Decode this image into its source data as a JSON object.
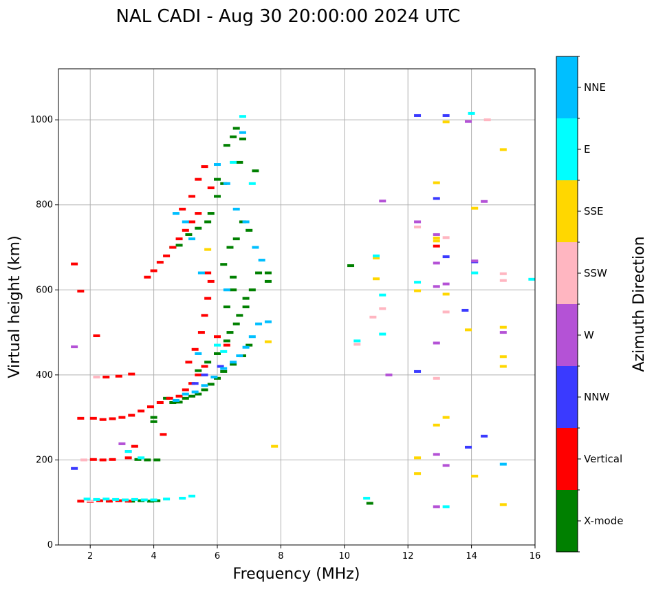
{
  "chart_data": {
    "type": "scatter",
    "title": "NAL CADI - Aug 30 20:00:00 2024 UTC",
    "xlabel": "Frequency (MHz)",
    "ylabel": "Virtual height (km)",
    "colorbar_label": "Azimuth Direction",
    "xlim": [
      1,
      16
    ],
    "ylim": [
      0,
      1120
    ],
    "xticks": [
      2,
      4,
      6,
      8,
      10,
      12,
      14,
      16
    ],
    "yticks": [
      0,
      200,
      400,
      600,
      800,
      1000
    ],
    "grid": true,
    "categories": [
      {
        "name": "X-mode",
        "color": "#008000"
      },
      {
        "name": "Vertical",
        "color": "#ff0000"
      },
      {
        "name": "NNW",
        "color": "#3a3aff"
      },
      {
        "name": "W",
        "color": "#b452d6"
      },
      {
        "name": "SSW",
        "color": "#ffb6c1"
      },
      {
        "name": "SSE",
        "color": "#ffd700"
      },
      {
        "name": "E",
        "color": "#00ffff"
      },
      {
        "name": "NNE",
        "color": "#00bfff"
      }
    ],
    "series": [
      {
        "name": "X-mode",
        "points": [
          [
            3.3,
            103
          ],
          [
            3.6,
            104
          ],
          [
            3.9,
            103
          ],
          [
            4.1,
            104
          ],
          [
            3.5,
            201
          ],
          [
            3.8,
            200
          ],
          [
            4.1,
            200
          ],
          [
            4.0,
            300
          ],
          [
            4.0,
            290
          ],
          [
            4.4,
            345
          ],
          [
            4.6,
            335
          ],
          [
            4.8,
            336
          ],
          [
            5.0,
            345
          ],
          [
            5.2,
            350
          ],
          [
            5.4,
            355
          ],
          [
            5.6,
            365
          ],
          [
            5.8,
            378
          ],
          [
            6.0,
            392
          ],
          [
            6.2,
            408
          ],
          [
            6.5,
            425
          ],
          [
            6.8,
            445
          ],
          [
            7.0,
            470
          ],
          [
            5.4,
            410
          ],
          [
            5.7,
            430
          ],
          [
            6.0,
            450
          ],
          [
            6.3,
            480
          ],
          [
            6.6,
            520
          ],
          [
            6.9,
            560
          ],
          [
            7.1,
            600
          ],
          [
            7.3,
            640
          ],
          [
            6.2,
            660
          ],
          [
            6.4,
            700
          ],
          [
            6.6,
            720
          ],
          [
            6.8,
            760
          ],
          [
            7.0,
            740
          ],
          [
            6.4,
            500
          ],
          [
            6.7,
            540
          ],
          [
            6.9,
            580
          ],
          [
            6.0,
            860
          ],
          [
            6.3,
            940
          ],
          [
            6.5,
            960
          ],
          [
            6.6,
            980
          ],
          [
            6.8,
            955
          ],
          [
            7.2,
            880
          ],
          [
            5.8,
            780
          ],
          [
            6.0,
            820
          ],
          [
            6.2,
            850
          ],
          [
            6.7,
            900
          ],
          [
            4.6,
            700
          ],
          [
            4.8,
            705
          ],
          [
            5.1,
            730
          ],
          [
            5.4,
            745
          ],
          [
            5.7,
            760
          ],
          [
            6.5,
            600
          ],
          [
            6.5,
            630
          ],
          [
            6.3,
            560
          ],
          [
            10.2,
            657
          ],
          [
            10.8,
            98
          ],
          [
            7.6,
            640
          ],
          [
            7.6,
            620
          ]
        ]
      },
      {
        "name": "Vertical",
        "points": [
          [
            1.7,
            103
          ],
          [
            2.0,
            102
          ],
          [
            2.3,
            104
          ],
          [
            2.6,
            103
          ],
          [
            2.9,
            104
          ],
          [
            3.2,
            103
          ],
          [
            2.1,
            201
          ],
          [
            2.4,
            200
          ],
          [
            2.7,
            201
          ],
          [
            1.7,
            298
          ],
          [
            2.1,
            298
          ],
          [
            2.4,
            295
          ],
          [
            2.7,
            297
          ],
          [
            3.0,
            300
          ],
          [
            3.3,
            305
          ],
          [
            3.6,
            315
          ],
          [
            3.9,
            325
          ],
          [
            4.2,
            335
          ],
          [
            4.5,
            345
          ],
          [
            4.8,
            350
          ],
          [
            5.0,
            365
          ],
          [
            5.2,
            380
          ],
          [
            5.4,
            400
          ],
          [
            5.6,
            420
          ],
          [
            5.1,
            430
          ],
          [
            5.3,
            460
          ],
          [
            5.5,
            500
          ],
          [
            5.6,
            540
          ],
          [
            5.7,
            580
          ],
          [
            5.8,
            620
          ],
          [
            5.7,
            640
          ],
          [
            3.8,
            630
          ],
          [
            4.0,
            645
          ],
          [
            4.2,
            665
          ],
          [
            4.4,
            680
          ],
          [
            4.6,
            700
          ],
          [
            4.8,
            720
          ],
          [
            5.0,
            740
          ],
          [
            5.2,
            760
          ],
          [
            5.4,
            780
          ],
          [
            4.9,
            790
          ],
          [
            5.2,
            820
          ],
          [
            5.4,
            860
          ],
          [
            5.6,
            890
          ],
          [
            5.8,
            840
          ],
          [
            2.2,
            492
          ],
          [
            2.5,
            395
          ],
          [
            2.9,
            397
          ],
          [
            3.3,
            402
          ],
          [
            3.4,
            232
          ],
          [
            3.2,
            205
          ],
          [
            4.3,
            260
          ],
          [
            1.5,
            661
          ],
          [
            1.7,
            597
          ],
          [
            12.9,
            703
          ],
          [
            6.0,
            490
          ],
          [
            6.3,
            470
          ]
        ]
      },
      {
        "name": "NNW",
        "points": [
          [
            12.3,
            1010
          ],
          [
            13.2,
            1010
          ],
          [
            12.9,
            815
          ],
          [
            13.2,
            678
          ],
          [
            13.8,
            552
          ],
          [
            12.3,
            408
          ],
          [
            14.4,
            256
          ],
          [
            13.9,
            230
          ],
          [
            14.1,
            666
          ],
          [
            5.3,
            380
          ],
          [
            5.6,
            400
          ],
          [
            6.1,
            420
          ],
          [
            1.5,
            180
          ]
        ]
      },
      {
        "name": "W",
        "points": [
          [
            12.3,
            760
          ],
          [
            12.9,
            730
          ],
          [
            12.9,
            663
          ],
          [
            13.2,
            614
          ],
          [
            12.9,
            608
          ],
          [
            12.9,
            475
          ],
          [
            12.9,
            213
          ],
          [
            13.2,
            187
          ],
          [
            12.9,
            90
          ],
          [
            14.1,
            668
          ],
          [
            14.4,
            808
          ],
          [
            15.0,
            500
          ],
          [
            11.4,
            400
          ],
          [
            11.2,
            809
          ],
          [
            13.9,
            996
          ],
          [
            3.2,
            220
          ],
          [
            3.0,
            238
          ],
          [
            1.5,
            466
          ]
        ]
      },
      {
        "name": "SSW",
        "points": [
          [
            12.3,
            748
          ],
          [
            13.2,
            723
          ],
          [
            13.2,
            548
          ],
          [
            12.9,
            392
          ],
          [
            14.5,
            1000
          ],
          [
            15.0,
            638
          ],
          [
            15.0,
            622
          ],
          [
            11.2,
            556
          ],
          [
            10.9,
            536
          ],
          [
            10.4,
            472
          ],
          [
            2.0,
            103
          ],
          [
            1.8,
            200
          ],
          [
            2.2,
            395
          ]
        ]
      },
      {
        "name": "SSE",
        "points": [
          [
            12.9,
            852
          ],
          [
            14.1,
            792
          ],
          [
            15.0,
            930
          ],
          [
            12.9,
            722
          ],
          [
            12.9,
            715
          ],
          [
            13.2,
            590
          ],
          [
            12.3,
            598
          ],
          [
            13.9,
            506
          ],
          [
            15.0,
            512
          ],
          [
            15.0,
            443
          ],
          [
            15.0,
            420
          ],
          [
            13.2,
            300
          ],
          [
            12.9,
            282
          ],
          [
            12.3,
            205
          ],
          [
            12.3,
            168
          ],
          [
            14.1,
            162
          ],
          [
            15.0,
            95
          ],
          [
            11.0,
            626
          ],
          [
            11.0,
            675
          ],
          [
            13.2,
            995
          ],
          [
            7.8,
            232
          ],
          [
            7.6,
            478
          ],
          [
            5.7,
            695
          ]
        ]
      },
      {
        "name": "E",
        "points": [
          [
            1.9,
            108
          ],
          [
            2.2,
            107
          ],
          [
            2.5,
            108
          ],
          [
            2.8,
            107
          ],
          [
            3.1,
            106
          ],
          [
            3.4,
            107
          ],
          [
            3.7,
            106
          ],
          [
            4.0,
            106
          ],
          [
            4.4,
            108
          ],
          [
            4.9,
            110
          ],
          [
            5.2,
            115
          ],
          [
            3.2,
            220
          ],
          [
            3.6,
            205
          ],
          [
            11.2,
            588
          ],
          [
            11.2,
            496
          ],
          [
            11.0,
            680
          ],
          [
            12.3,
            618
          ],
          [
            13.2,
            90
          ],
          [
            14.1,
            640
          ],
          [
            14.0,
            1015
          ],
          [
            15.9,
            625
          ],
          [
            10.7,
            110
          ],
          [
            10.4,
            480
          ],
          [
            6.0,
            470
          ],
          [
            6.2,
            455
          ],
          [
            6.5,
            900
          ],
          [
            6.8,
            1008
          ],
          [
            7.1,
            850
          ]
        ]
      },
      {
        "name": "NNE",
        "points": [
          [
            4.7,
            340
          ],
          [
            5.0,
            355
          ],
          [
            5.3,
            360
          ],
          [
            5.6,
            375
          ],
          [
            5.9,
            395
          ],
          [
            6.2,
            415
          ],
          [
            6.5,
            430
          ],
          [
            6.7,
            445
          ],
          [
            6.9,
            465
          ],
          [
            7.1,
            490
          ],
          [
            7.3,
            520
          ],
          [
            7.6,
            525
          ],
          [
            6.0,
            895
          ],
          [
            6.3,
            850
          ],
          [
            6.6,
            790
          ],
          [
            6.9,
            760
          ],
          [
            7.2,
            700
          ],
          [
            7.4,
            670
          ],
          [
            5.5,
            640
          ],
          [
            5.2,
            720
          ],
          [
            5.0,
            760
          ],
          [
            4.7,
            780
          ],
          [
            5.4,
            450
          ],
          [
            6.8,
            970
          ],
          [
            6.3,
            600
          ],
          [
            15.0,
            190
          ]
        ]
      }
    ]
  }
}
